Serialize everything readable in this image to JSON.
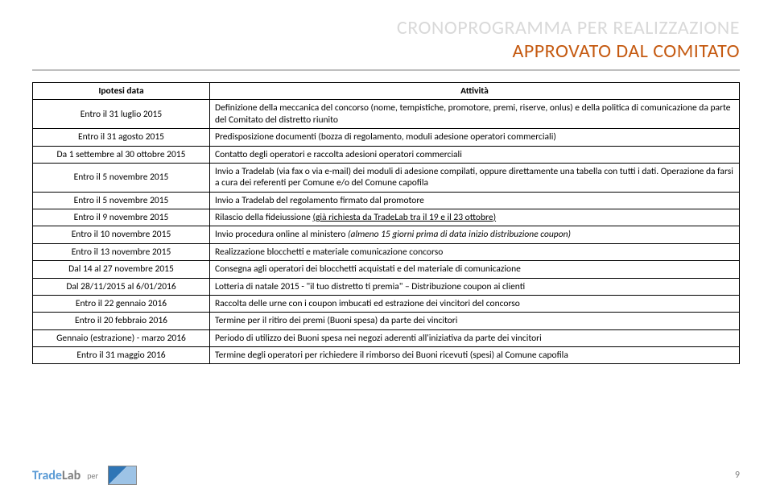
{
  "title": {
    "line1": "CRONOPROGRAMMA PER REALIZZAZIONE",
    "line2": "APPROVATO DAL COMITATO"
  },
  "headers": {
    "col1": "Ipotesi data",
    "col2": "Attività"
  },
  "rows": [
    {
      "date": "Entro il 31 luglio 2015",
      "activity": "Definizione della meccanica del concorso (nome, tempistiche, promotore, premi, riserve, onlus) e della politica di comunicazione da parte del Comitato del distretto riunito"
    },
    {
      "date": "Entro il 31 agosto 2015",
      "activity": "Predisposizione documenti (bozza di regolamento, moduli adesione operatori commerciali)"
    },
    {
      "date": "Da 1 settembre al 30 ottobre  2015",
      "activity": "Contatto degli operatori e raccolta adesioni operatori commerciali"
    },
    {
      "date": "Entro il 5 novembre 2015",
      "activity": "Invio a Tradelab (via fax o via e-mail) dei moduli di adesione compilati, oppure direttamente una tabella con tutti i dati. Operazione da farsi a cura dei referenti per Comune e/o del Comune capofila"
    },
    {
      "date": "Entro il 5 novembre  2015",
      "activity": "Invio a Tradelab del regolamento firmato dal promotore"
    },
    {
      "date": "Entro il 9 novembre 2015",
      "activity_pre": "Rilascio della fideiussione  ",
      "activity_ul": "(già richiesta da TradeLab tra il 19 e il 23 ottobre)"
    },
    {
      "date": "Entro il 10 novembre 2015",
      "activity_pre": "Invio procedura online al ministero ",
      "activity_it": "(almeno 15 giorni prima di data inizio distribuzione coupon)"
    },
    {
      "date": "Entro il 13 novembre 2015",
      "activity": "Realizzazione blocchetti e materiale comunicazione concorso"
    },
    {
      "date": "Dal 14 al 27 novembre 2015",
      "activity": "Consegna agli operatori dei blocchetti acquistati e del materiale di comunicazione"
    },
    {
      "date": "Dal 28/11/2015 al 6/01/2016",
      "activity": "Lotteria di natale 2015 - \"il tuo distretto ti premia\" – Distribuzione coupon ai clienti"
    },
    {
      "date": "Entro il 22 gennaio 2016",
      "activity": "Raccolta delle urne con i coupon imbucati ed estrazione dei vincitori del concorso"
    },
    {
      "date": "Entro il 20 febbraio 2016",
      "activity": "Termine per il ritiro dei premi (Buoni spesa) da parte dei vincitori"
    },
    {
      "date": "Gennaio (estrazione) - marzo 2016",
      "activity": "Periodo di utilizzo dei Buoni spesa nei negozi aderenti all'iniziativa da parte dei vincitori"
    },
    {
      "date": "Entro il 31 maggio  2016",
      "activity": "Termine degli operatori per richiedere il rimborso dei Buoni ricevuti (spesi) al Comune capofila"
    }
  ],
  "footer": {
    "brand1": "Trade",
    "brand2": "Lab",
    "per": "per",
    "page": "9"
  },
  "colors": {
    "title_gray": "#d9d9d9",
    "title_orange": "#c55a11",
    "border": "#000000",
    "underline": "#bfbfbf",
    "logo_blue": "#5b9bd5",
    "logo_gray": "#7f7f7f"
  }
}
